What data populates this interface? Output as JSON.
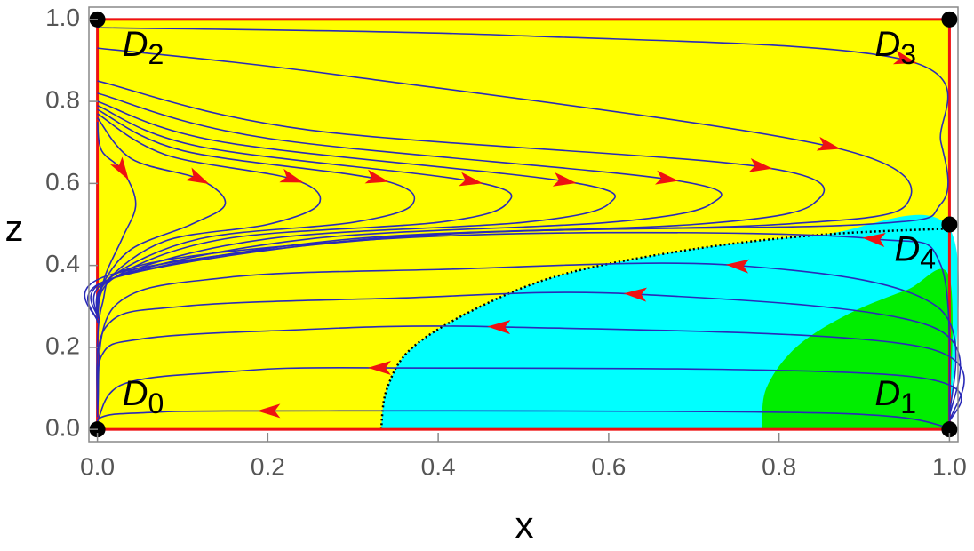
{
  "chart_data": {
    "type": "phase-portrait",
    "x_label": "x",
    "y_label": "z",
    "xlim": [
      -0.01,
      1.01
    ],
    "ylim": [
      -0.03,
      1.03
    ],
    "xticks": [
      {
        "value": 0,
        "label": "0.0"
      },
      {
        "value": 0.2,
        "label": "0.2"
      },
      {
        "value": 0.4,
        "label": "0.4"
      },
      {
        "value": 0.6,
        "label": "0.6"
      },
      {
        "value": 0.8,
        "label": "0.8"
      },
      {
        "value": 1,
        "label": "1.0"
      }
    ],
    "yticks": [
      {
        "value": 0,
        "label": "0.0"
      },
      {
        "value": 0.2,
        "label": "0.2"
      },
      {
        "value": 0.4,
        "label": "0.4"
      },
      {
        "value": 0.6,
        "label": "0.6"
      },
      {
        "value": 0.8,
        "label": "0.8"
      },
      {
        "value": 1,
        "label": "1.0"
      }
    ],
    "background_color": "#ffff00",
    "box_color": "#ee1111",
    "box": {
      "x": [
        0,
        1
      ],
      "z": [
        0,
        1
      ]
    },
    "regions": [
      {
        "color": "#00ffff",
        "x": [
          0.333,
          0.34,
          0.37,
          0.45,
          0.55,
          0.7,
          0.85,
          1,
          1
        ],
        "z": [
          0,
          0.1,
          0.2,
          0.3,
          0.38,
          0.44,
          0.475,
          0.49,
          0
        ]
      },
      {
        "color": "#00ee00",
        "x": [
          0.78,
          0.785,
          0.82,
          0.88,
          0.95,
          1,
          1
        ],
        "z": [
          0,
          0.1,
          0.2,
          0.28,
          0.34,
          0.37,
          0
        ]
      }
    ],
    "separatrix": {
      "color": "#000000",
      "x": [
        0.333,
        0.34,
        0.37,
        0.45,
        0.55,
        0.7,
        0.85,
        1
      ],
      "z": [
        0,
        0.1,
        0.2,
        0.3,
        0.38,
        0.44,
        0.475,
        0.49
      ]
    },
    "stream_color": "#2a2ab8",
    "arrow_color": "#ee1111",
    "streamlines": [
      {
        "x": [
          0,
          0.005,
          0.03,
          0.045,
          0.03,
          0.01,
          0
        ],
        "z": [
          0.75,
          0.68,
          0.63,
          0.55,
          0.47,
          0.38,
          0.3
        ]
      },
      {
        "x": [
          0,
          0.04,
          0.12,
          0.15,
          0.11,
          0.04,
          0.005,
          0
        ],
        "z": [
          0.76,
          0.66,
          0.61,
          0.55,
          0.5,
          0.44,
          0.35,
          0.29
        ]
      },
      {
        "x": [
          0,
          0.08,
          0.23,
          0.26,
          0.2,
          0.08,
          0.01,
          0
        ],
        "z": [
          0.77,
          0.67,
          0.61,
          0.55,
          0.5,
          0.46,
          0.36,
          0.28
        ]
      },
      {
        "x": [
          0,
          0.1,
          0.33,
          0.37,
          0.3,
          0.12,
          0.015,
          0
        ],
        "z": [
          0.78,
          0.68,
          0.61,
          0.55,
          0.505,
          0.465,
          0.37,
          0.28
        ]
      },
      {
        "x": [
          0,
          0.12,
          0.44,
          0.48,
          0.4,
          0.15,
          0.02,
          0
        ],
        "z": [
          0.79,
          0.69,
          0.605,
          0.55,
          0.505,
          0.465,
          0.37,
          0.27
        ]
      },
      {
        "x": [
          0,
          0.15,
          0.55,
          0.6,
          0.5,
          0.2,
          0.02,
          0
        ],
        "z": [
          0.8,
          0.7,
          0.605,
          0.55,
          0.505,
          0.465,
          0.37,
          0.27
        ]
      },
      {
        "x": [
          0,
          0.2,
          0.67,
          0.72,
          0.6,
          0.25,
          0.02,
          0
        ],
        "z": [
          0.82,
          0.71,
          0.61,
          0.55,
          0.505,
          0.465,
          0.37,
          0.27
        ]
      },
      {
        "x": [
          0,
          0.25,
          0.78,
          0.84,
          0.7,
          0.3,
          0.02,
          0
        ],
        "z": [
          0.85,
          0.73,
          0.64,
          0.55,
          0.5,
          0.465,
          0.37,
          0.27
        ]
      },
      {
        "x": [
          0,
          0.3,
          0.86,
          0.95,
          0.8,
          0.35,
          0.02,
          0
        ],
        "z": [
          0.93,
          0.86,
          0.69,
          0.55,
          0.5,
          0.47,
          0.37,
          0.26
        ]
      },
      {
        "x": [
          0,
          0.5,
          0.95,
          0.99,
          0.99,
          0.9,
          0.4,
          0.02,
          0
        ],
        "z": [
          0.98,
          0.96,
          0.9,
          0.7,
          0.55,
          0.5,
          0.475,
          0.38,
          0.26
        ]
      },
      {
        "x": [
          1,
          0.99,
          0.91,
          0.6,
          0.3,
          0.05,
          0.005,
          0
        ],
        "z": [
          0.02,
          0.4,
          0.465,
          0.48,
          0.46,
          0.4,
          0.3,
          0.05
        ]
      },
      {
        "x": [
          1,
          0.985,
          0.75,
          0.4,
          0.15,
          0.02,
          0
        ],
        "z": [
          0.02,
          0.3,
          0.4,
          0.39,
          0.37,
          0.3,
          0.05
        ]
      },
      {
        "x": [
          1,
          0.98,
          0.63,
          0.35,
          0.1,
          0.01,
          0
        ],
        "z": [
          0.02,
          0.25,
          0.33,
          0.32,
          0.3,
          0.25,
          0.04
        ]
      },
      {
        "x": [
          1,
          0.97,
          0.47,
          0.2,
          0.05,
          0.005,
          0
        ],
        "z": [
          0.01,
          0.2,
          0.25,
          0.24,
          0.22,
          0.18,
          0.03
        ]
      },
      {
        "x": [
          1,
          0.95,
          0.33,
          0.15,
          0.03,
          0
        ],
        "z": [
          0.01,
          0.13,
          0.15,
          0.14,
          0.11,
          0.02
        ]
      },
      {
        "x": [
          1,
          0.85,
          0.2,
          0.05,
          0.005,
          0
        ],
        "z": [
          0.005,
          0.04,
          0.045,
          0.04,
          0.03,
          0
        ]
      }
    ],
    "point_color": "#000000",
    "points": [
      {
        "x": 0,
        "z": 0,
        "label": "D",
        "sub": "0"
      },
      {
        "x": 1,
        "z": 0,
        "label": "D",
        "sub": "1"
      },
      {
        "x": 0,
        "z": 1,
        "label": "D",
        "sub": "2"
      },
      {
        "x": 1,
        "z": 1,
        "label": "D",
        "sub": "3"
      },
      {
        "x": 1,
        "z": 0.5,
        "label": "D",
        "sub": "4"
      }
    ]
  }
}
